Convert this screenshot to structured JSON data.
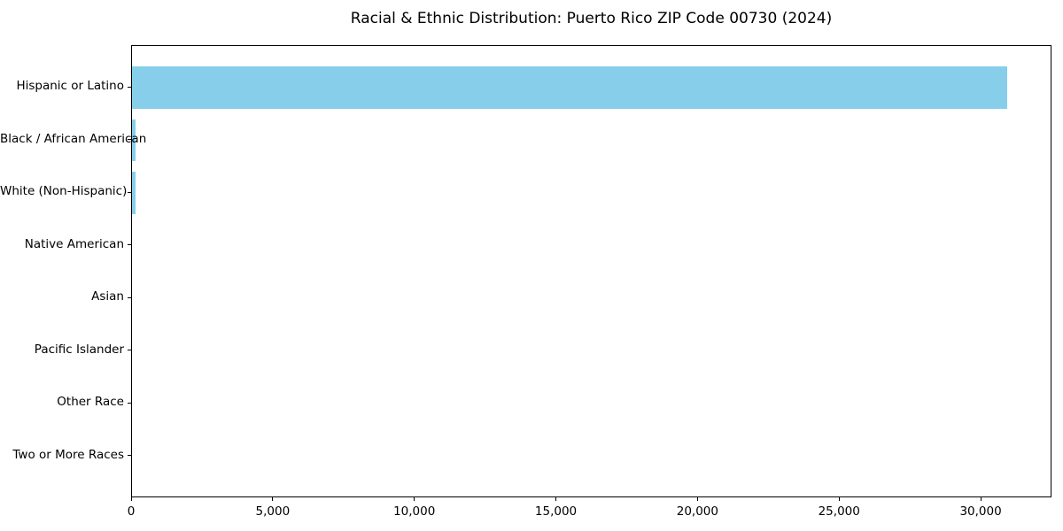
{
  "chart_data": {
    "type": "bar",
    "orientation": "horizontal",
    "title": "Racial & Ethnic Distribution: Puerto Rico ZIP Code 00730 (2024)",
    "categories": [
      "Hispanic or Latino",
      "Black / African American",
      "White (Non-Hispanic)",
      "Native American",
      "Asian",
      "Pacific Islander",
      "Other Race",
      "Two or More Races"
    ],
    "values": [
      30900,
      110,
      130,
      0,
      0,
      0,
      0,
      0
    ],
    "xlabel": "",
    "ylabel": "",
    "xlim": [
      0,
      32500
    ],
    "xticks": [
      0,
      5000,
      10000,
      15000,
      20000,
      25000,
      30000
    ],
    "xtick_labels": [
      "0",
      "5,000",
      "10,000",
      "15,000",
      "20,000",
      "25,000",
      "30,000"
    ],
    "bar_color": "#87CEEB",
    "axis_color": "#000000",
    "background": "#FFFFFF",
    "grid": false,
    "legend": null
  }
}
